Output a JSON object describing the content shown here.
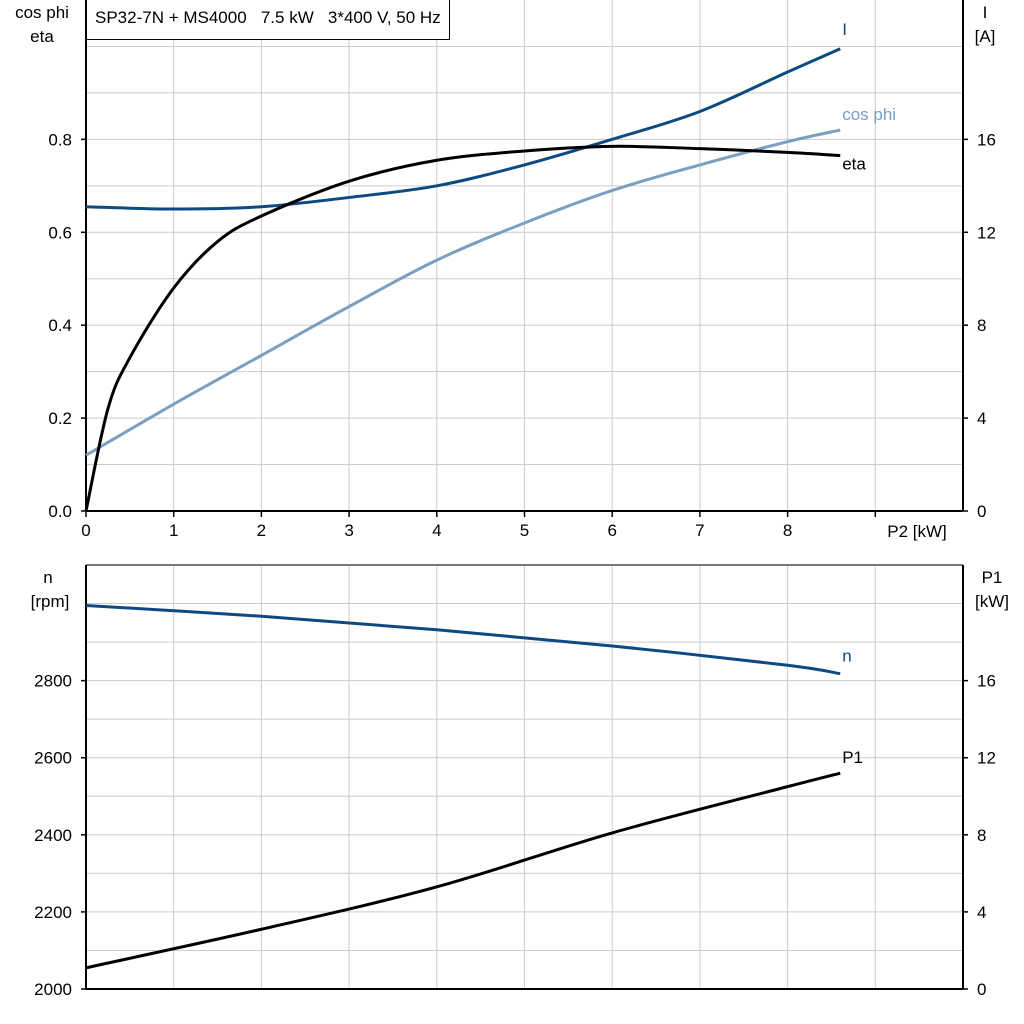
{
  "chart_data": [
    {
      "type": "line",
      "title": "SP32-7N + MS4000   7.5 kW   3*400 V, 50 Hz",
      "xlabel": "P2 [kW]",
      "ylabel_left": [
        "cos phi",
        "eta"
      ],
      "ylabel_right": [
        "I",
        "[A]"
      ],
      "xlim": [
        0,
        10
      ],
      "ylim_left": [
        0,
        1.1
      ],
      "ylim_right": [
        0,
        22
      ],
      "xticks": [
        0,
        1,
        2,
        3,
        4,
        5,
        6,
        7,
        8
      ],
      "yticks_left": [
        "0.0",
        "0.2",
        "0.4",
        "0.6",
        "0.8"
      ],
      "yticks_right": [
        "0",
        "4",
        "8",
        "12",
        "16"
      ],
      "grid": true,
      "series": [
        {
          "name": "I",
          "axis": "right",
          "color": "#0d4a82",
          "x": [
            0,
            1,
            2,
            3,
            4,
            5,
            6,
            7,
            8,
            8.6
          ],
          "y": [
            13.1,
            13.0,
            13.1,
            13.5,
            14.0,
            14.9,
            16.0,
            17.2,
            18.9,
            19.9
          ]
        },
        {
          "name": "cos phi",
          "axis": "left",
          "color": "#7a9fc0",
          "x": [
            0,
            1,
            2,
            3,
            4,
            5,
            6,
            7,
            8,
            8.6
          ],
          "y": [
            0.12,
            0.23,
            0.335,
            0.44,
            0.54,
            0.62,
            0.69,
            0.745,
            0.795,
            0.82
          ]
        },
        {
          "name": "eta",
          "axis": "left",
          "color": "#000000",
          "x": [
            0,
            0.25,
            0.5,
            1,
            1.5,
            2,
            3,
            4,
            5,
            6,
            7,
            8,
            8.6
          ],
          "y": [
            0,
            0.22,
            0.33,
            0.48,
            0.58,
            0.635,
            0.71,
            0.755,
            0.775,
            0.785,
            0.78,
            0.772,
            0.765
          ]
        }
      ]
    },
    {
      "type": "line",
      "xlim": [
        0,
        10
      ],
      "ylabel_left": [
        "n",
        "[rpm]"
      ],
      "ylabel_right": [
        "P1",
        "[kW]"
      ],
      "ylim_left": [
        2000,
        3100
      ],
      "ylim_right": [
        0,
        22
      ],
      "yticks_left": [
        "2000",
        "2200",
        "2400",
        "2600",
        "2800"
      ],
      "yticks_right": [
        "0",
        "4",
        "8",
        "12",
        "16"
      ],
      "grid": true,
      "series": [
        {
          "name": "n",
          "axis": "left",
          "color": "#0d4a82",
          "x": [
            0,
            2,
            4,
            6,
            8,
            8.6
          ],
          "y": [
            2995,
            2967,
            2932,
            2890,
            2840,
            2818
          ]
        },
        {
          "name": "P1",
          "axis": "right",
          "color": "#000000",
          "x": [
            0,
            2,
            4,
            6,
            8,
            8.6
          ],
          "y": [
            1.1,
            3.1,
            5.3,
            8.1,
            10.5,
            11.2
          ]
        }
      ]
    }
  ]
}
